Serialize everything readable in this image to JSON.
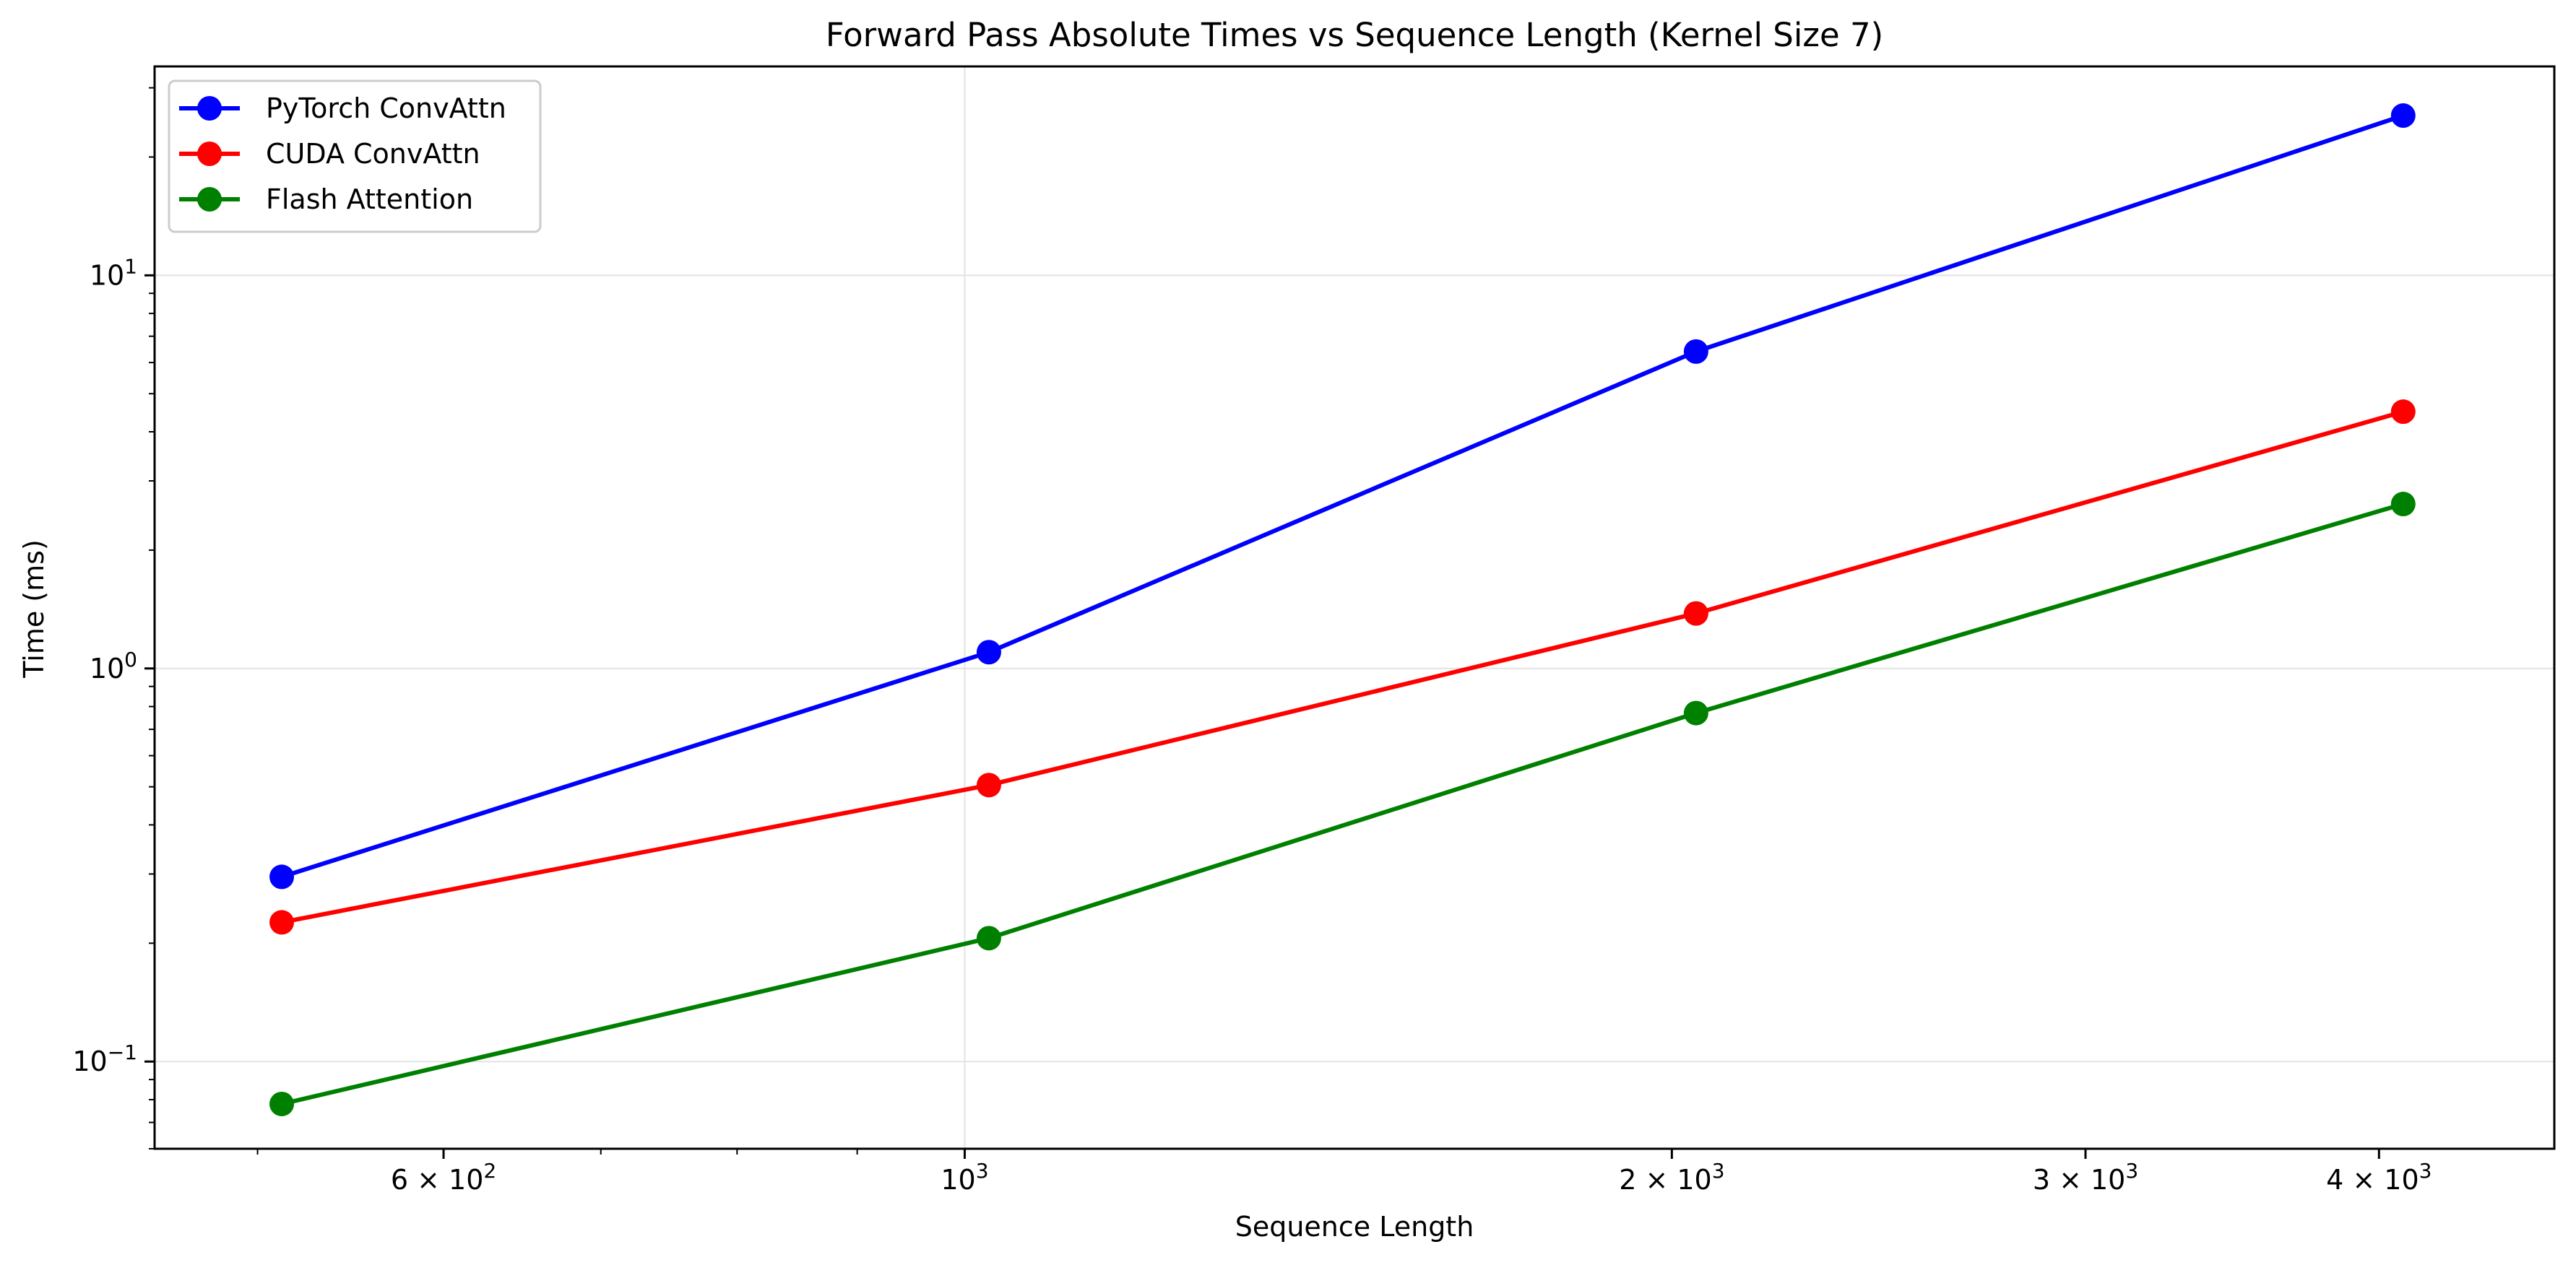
{
  "chart_data": {
    "type": "line",
    "title": "Forward Pass Absolute Times vs Sequence Length (Kernel Size 7)",
    "xlabel": "Sequence Length",
    "ylabel": "Time (ms)",
    "x_scale": "log",
    "y_scale": "log",
    "xlim": [
      452,
      4750
    ],
    "ylim": [
      0.06,
      34
    ],
    "x": [
      512,
      1024,
      2048,
      4096
    ],
    "x_ticks": [
      {
        "value": 600,
        "mantissa": "6",
        "exp": "2"
      },
      {
        "value": 1000,
        "mantissa": "",
        "exp": "3"
      },
      {
        "value": 2000,
        "mantissa": "2",
        "exp": "3"
      },
      {
        "value": 3000,
        "mantissa": "3",
        "exp": "3"
      },
      {
        "value": 4000,
        "mantissa": "4",
        "exp": "3"
      }
    ],
    "y_ticks": [
      {
        "value": 0.1,
        "exp": "−1"
      },
      {
        "value": 1,
        "exp": "0"
      },
      {
        "value": 10,
        "exp": "1"
      }
    ],
    "grid": true,
    "legend_position": "top-left",
    "series": [
      {
        "name": "PyTorch ConvAttn",
        "color": "#0000ff",
        "values": [
          0.295,
          1.1,
          6.4,
          25.5
        ]
      },
      {
        "name": "CUDA ConvAttn",
        "color": "#ff0000",
        "values": [
          0.226,
          0.505,
          1.38,
          4.5
        ]
      },
      {
        "name": "Flash Attention",
        "color": "#008000",
        "values": [
          0.078,
          0.206,
          0.77,
          2.62
        ]
      }
    ]
  }
}
